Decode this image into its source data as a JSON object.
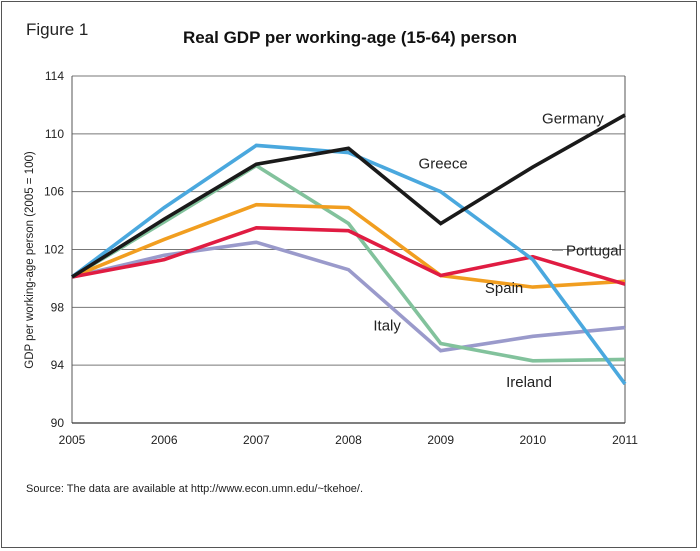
{
  "figure_label": "Figure 1",
  "source_note": "Source: The data are available at http://www.econ.umn.edu/~tkehoe/.",
  "chart_data": {
    "type": "line",
    "title": "Real GDP per working-age (15-64) person",
    "xlabel": "",
    "ylabel": "GDP per working-age person (2005 = 100)",
    "x": [
      "2005",
      "2006",
      "2007",
      "2008",
      "2009",
      "2010",
      "2011"
    ],
    "yticks": [
      90,
      94,
      98,
      102,
      106,
      110,
      114
    ],
    "ylim": [
      90,
      114
    ],
    "grid": "horizontal",
    "series": [
      {
        "name": "Germany",
        "color": "#1a1a1a",
        "values": [
          100.1,
          104.1,
          107.9,
          109.0,
          103.8,
          107.7,
          111.3
        ]
      },
      {
        "name": "Greece",
        "color": "#4aa8de",
        "values": [
          100.1,
          104.9,
          109.2,
          108.7,
          106.0,
          101.3,
          92.7
        ]
      },
      {
        "name": "Ireland",
        "color": "#82c29c",
        "values": [
          100.1,
          103.9,
          107.8,
          103.8,
          95.5,
          94.3,
          94.4
        ]
      },
      {
        "name": "Spain",
        "color": "#f19e20",
        "values": [
          100.1,
          102.7,
          105.1,
          104.9,
          100.2,
          99.4,
          99.8
        ]
      },
      {
        "name": "Portugal",
        "color": "#e01c42",
        "values": [
          100.1,
          101.3,
          103.5,
          103.3,
          100.2,
          101.5,
          99.6
        ]
      },
      {
        "name": "Italy",
        "color": "#9a9acb",
        "values": [
          100.1,
          101.6,
          102.5,
          100.6,
          95.0,
          96.0,
          96.6
        ]
      }
    ]
  }
}
